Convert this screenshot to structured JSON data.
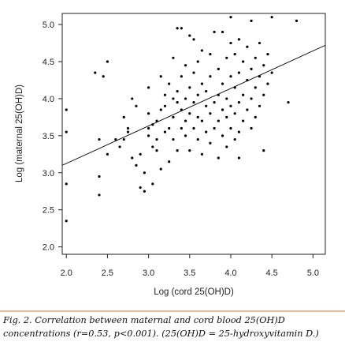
{
  "caption": {
    "line1": "Fig.  2.  Correlation  between  maternal  and  cord  blood  25(OH)D",
    "line2": "concentrations (r=0.53, p<0.001). (25(OH)D = 25-hydroxyvitamin D.)"
  },
  "chart_data": {
    "type": "scatter",
    "xlabel": "Log (cord 25(OH)D)",
    "ylabel": "Log (maternal 25(OH)D)",
    "xlim": [
      1.95,
      5.15
    ],
    "ylim": [
      1.9,
      5.15
    ],
    "x_ticks": [
      "2.0",
      "2.5",
      "3.0",
      "3.5",
      "4.0",
      "4.5",
      "5.0"
    ],
    "y_ticks": [
      "2.0",
      "2.5",
      "3.0",
      "3.5",
      "4.0",
      "4.5",
      "5.0"
    ],
    "regression_line": {
      "x": [
        1.95,
        5.15
      ],
      "y": [
        3.1,
        4.72
      ]
    },
    "series": [
      {
        "points": [
          [
            2.0,
            2.35
          ],
          [
            2.0,
            2.85
          ],
          [
            2.0,
            3.55
          ],
          [
            2.0,
            3.85
          ],
          [
            2.35,
            4.35
          ],
          [
            2.45,
            4.3
          ],
          [
            2.5,
            4.5
          ],
          [
            2.4,
            2.7
          ],
          [
            2.4,
            2.95
          ],
          [
            2.5,
            3.25
          ],
          [
            2.4,
            3.45
          ],
          [
            2.6,
            3.45
          ],
          [
            2.7,
            3.45
          ],
          [
            2.65,
            3.35
          ],
          [
            2.7,
            3.75
          ],
          [
            2.75,
            3.55
          ],
          [
            2.75,
            3.6
          ],
          [
            2.8,
            3.2
          ],
          [
            2.85,
            3.1
          ],
          [
            2.8,
            4.0
          ],
          [
            2.85,
            3.9
          ],
          [
            2.9,
            3.25
          ],
          [
            2.9,
            2.8
          ],
          [
            2.95,
            2.75
          ],
          [
            2.95,
            3.0
          ],
          [
            3.0,
            3.6
          ],
          [
            3.0,
            3.5
          ],
          [
            3.0,
            3.8
          ],
          [
            3.0,
            4.15
          ],
          [
            3.05,
            3.35
          ],
          [
            3.05,
            3.65
          ],
          [
            3.05,
            2.85
          ],
          [
            3.1,
            3.3
          ],
          [
            3.1,
            3.45
          ],
          [
            3.1,
            3.7
          ],
          [
            3.15,
            3.85
          ],
          [
            3.15,
            4.3
          ],
          [
            3.15,
            3.05
          ],
          [
            3.2,
            3.55
          ],
          [
            3.2,
            3.9
          ],
          [
            3.2,
            4.05
          ],
          [
            3.25,
            3.15
          ],
          [
            3.25,
            3.6
          ],
          [
            3.25,
            4.2
          ],
          [
            3.3,
            3.45
          ],
          [
            3.3,
            3.75
          ],
          [
            3.3,
            4.0
          ],
          [
            3.3,
            4.55
          ],
          [
            3.35,
            3.3
          ],
          [
            3.35,
            3.95
          ],
          [
            3.35,
            4.1
          ],
          [
            3.35,
            4.95
          ],
          [
            3.4,
            3.6
          ],
          [
            3.4,
            3.85
          ],
          [
            3.4,
            4.3
          ],
          [
            3.4,
            4.95
          ],
          [
            3.45,
            3.5
          ],
          [
            3.45,
            3.7
          ],
          [
            3.45,
            4.0
          ],
          [
            3.45,
            4.45
          ],
          [
            3.5,
            3.3
          ],
          [
            3.5,
            3.8
          ],
          [
            3.5,
            4.15
          ],
          [
            3.5,
            4.85
          ],
          [
            3.55,
            3.6
          ],
          [
            3.55,
            3.95
          ],
          [
            3.55,
            4.35
          ],
          [
            3.55,
            4.8
          ],
          [
            3.6,
            3.45
          ],
          [
            3.6,
            3.75
          ],
          [
            3.6,
            4.05
          ],
          [
            3.6,
            4.5
          ],
          [
            3.65,
            3.25
          ],
          [
            3.65,
            3.7
          ],
          [
            3.65,
            4.2
          ],
          [
            3.65,
            4.65
          ],
          [
            3.7,
            3.55
          ],
          [
            3.7,
            3.9
          ],
          [
            3.7,
            4.1
          ],
          [
            3.75,
            3.4
          ],
          [
            3.75,
            3.8
          ],
          [
            3.75,
            4.3
          ],
          [
            3.75,
            4.6
          ],
          [
            3.8,
            3.6
          ],
          [
            3.8,
            3.95
          ],
          [
            3.8,
            4.9
          ],
          [
            3.85,
            3.2
          ],
          [
            3.85,
            3.7
          ],
          [
            3.85,
            4.05
          ],
          [
            3.85,
            4.4
          ],
          [
            3.9,
            3.5
          ],
          [
            3.9,
            3.85
          ],
          [
            3.9,
            4.2
          ],
          [
            3.9,
            4.9
          ],
          [
            3.95,
            3.35
          ],
          [
            3.95,
            3.75
          ],
          [
            3.95,
            4.0
          ],
          [
            3.95,
            4.55
          ],
          [
            4.0,
            3.6
          ],
          [
            4.0,
            3.9
          ],
          [
            4.0,
            4.3
          ],
          [
            4.0,
            4.75
          ],
          [
            4.0,
            5.1
          ],
          [
            4.05,
            3.45
          ],
          [
            4.05,
            3.8
          ],
          [
            4.05,
            4.15
          ],
          [
            4.05,
            4.6
          ],
          [
            4.1,
            3.55
          ],
          [
            4.1,
            3.95
          ],
          [
            4.1,
            4.35
          ],
          [
            4.1,
            4.8
          ],
          [
            4.1,
            3.2
          ],
          [
            4.15,
            3.7
          ],
          [
            4.15,
            4.05
          ],
          [
            4.15,
            4.5
          ],
          [
            4.2,
            3.85
          ],
          [
            4.2,
            4.25
          ],
          [
            4.2,
            4.7
          ],
          [
            4.25,
            3.6
          ],
          [
            4.25,
            4.0
          ],
          [
            4.25,
            4.4
          ],
          [
            4.25,
            5.05
          ],
          [
            4.3,
            3.75
          ],
          [
            4.3,
            4.15
          ],
          [
            4.3,
            4.55
          ],
          [
            4.35,
            3.9
          ],
          [
            4.35,
            4.3
          ],
          [
            4.35,
            4.75
          ],
          [
            4.4,
            4.05
          ],
          [
            4.4,
            4.45
          ],
          [
            4.4,
            3.3
          ],
          [
            4.45,
            4.2
          ],
          [
            4.45,
            4.6
          ],
          [
            4.5,
            4.35
          ],
          [
            4.5,
            5.1
          ],
          [
            4.7,
            3.95
          ],
          [
            4.8,
            5.05
          ]
        ]
      }
    ]
  }
}
